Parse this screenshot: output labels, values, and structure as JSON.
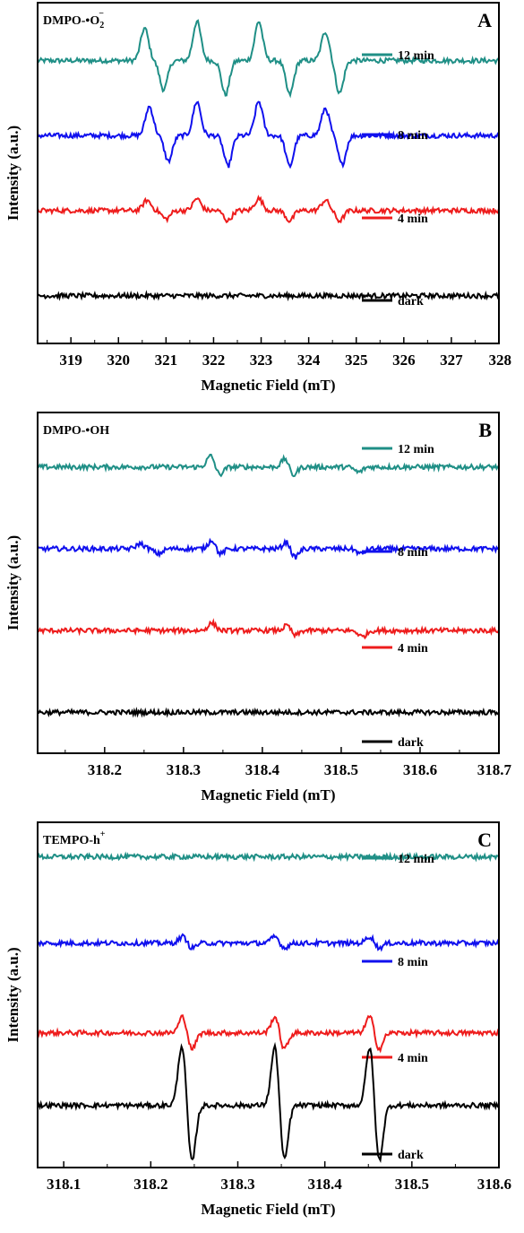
{
  "chart_data": [
    {
      "type": "line",
      "panel_letter": "A",
      "probe_label": "DMPO-•O",
      "probe_sub": "2",
      "probe_sup": "−",
      "xlabel": "Magnetic Field (mT)",
      "ylabel": "Intensity (a.u.)",
      "xlim": [
        318.3,
        328.0
      ],
      "xticks": [
        "319",
        "320",
        "321",
        "322",
        "323",
        "324",
        "325",
        "326",
        "327",
        "328"
      ],
      "y_ticks_shown": false,
      "grid": false,
      "legend_position": "top-right",
      "series": [
        {
          "name": "12 min",
          "color": "#1f8f86",
          "baseline": 0.83,
          "peaks": [
            {
              "x": 320.55,
              "amp": 0.095
            },
            {
              "x": 320.95,
              "amp": -0.085
            },
            {
              "x": 321.65,
              "amp": 0.115
            },
            {
              "x": 322.25,
              "amp": -0.1
            },
            {
              "x": 322.95,
              "amp": 0.115
            },
            {
              "x": 323.6,
              "amp": -0.1
            },
            {
              "x": 324.35,
              "amp": 0.085
            },
            {
              "x": 324.65,
              "amp": -0.095
            }
          ]
        },
        {
          "name": "8 min",
          "color": "#1010ee",
          "baseline": 0.61,
          "peaks": [
            {
              "x": 320.65,
              "amp": 0.085
            },
            {
              "x": 321.05,
              "amp": -0.075
            },
            {
              "x": 321.65,
              "amp": 0.1
            },
            {
              "x": 322.3,
              "amp": -0.09
            },
            {
              "x": 322.95,
              "amp": 0.1
            },
            {
              "x": 323.6,
              "amp": -0.09
            },
            {
              "x": 324.35,
              "amp": 0.08
            },
            {
              "x": 324.7,
              "amp": -0.085
            }
          ]
        },
        {
          "name": "4 min",
          "color": "#ee1c1c",
          "baseline": 0.39,
          "peaks": [
            {
              "x": 320.6,
              "amp": 0.03
            },
            {
              "x": 321.0,
              "amp": -0.025
            },
            {
              "x": 321.65,
              "amp": 0.035
            },
            {
              "x": 322.3,
              "amp": -0.03
            },
            {
              "x": 322.95,
              "amp": 0.035
            },
            {
              "x": 323.6,
              "amp": -0.03
            },
            {
              "x": 324.35,
              "amp": 0.03
            },
            {
              "x": 324.65,
              "amp": -0.03
            }
          ]
        },
        {
          "name": "dark",
          "color": "#000000",
          "baseline": 0.14,
          "peaks": []
        }
      ]
    },
    {
      "type": "line",
      "panel_letter": "B",
      "probe_label": "DMPO-•OH",
      "probe_sub": "",
      "probe_sup": "",
      "xlabel": "Magnetic Field (mT)",
      "ylabel": "Intensity (a.u.)",
      "xlim": [
        318.115,
        318.7
      ],
      "xticks": [
        "318.2",
        "318.3",
        "318.4",
        "318.5",
        "318.6",
        "318.7"
      ],
      "y_ticks_shown": false,
      "grid": false,
      "legend_position": "top-right",
      "series": [
        {
          "name": "12 min",
          "color": "#1f8f86",
          "baseline": 0.84,
          "peaks": [
            {
              "x": 318.335,
              "amp": 0.035
            },
            {
              "x": 318.345,
              "amp": -0.025
            },
            {
              "x": 318.43,
              "amp": 0.03
            },
            {
              "x": 318.438,
              "amp": -0.03
            },
            {
              "x": 318.522,
              "amp": -0.015
            }
          ]
        },
        {
          "name": "8 min",
          "color": "#1010ee",
          "baseline": 0.6,
          "peaks": [
            {
              "x": 318.245,
              "amp": 0.015
            },
            {
              "x": 318.268,
              "amp": -0.015
            },
            {
              "x": 318.337,
              "amp": 0.03
            },
            {
              "x": 318.345,
              "amp": -0.02
            },
            {
              "x": 318.432,
              "amp": 0.025
            },
            {
              "x": 318.44,
              "amp": -0.03
            },
            {
              "x": 318.525,
              "amp": -0.015
            }
          ]
        },
        {
          "name": "4 min",
          "color": "#ee1c1c",
          "baseline": 0.36,
          "peaks": [
            {
              "x": 318.336,
              "amp": 0.022
            },
            {
              "x": 318.433,
              "amp": 0.02
            },
            {
              "x": 318.44,
              "amp": -0.02
            },
            {
              "x": 318.527,
              "amp": -0.018
            }
          ]
        },
        {
          "name": "dark",
          "color": "#000000",
          "baseline": 0.12,
          "peaks": []
        }
      ]
    },
    {
      "type": "line",
      "panel_letter": "C",
      "probe_label": "TEMPO-h",
      "probe_sub": "",
      "probe_sup": "+",
      "xlabel": "Magnetic Field (mT)",
      "ylabel": "Intensity (a.u.)",
      "xlim": [
        318.07,
        318.6
      ],
      "xticks": [
        "318.1",
        "318.2",
        "318.3",
        "318.4",
        "318.5",
        "318.6"
      ],
      "y_ticks_shown": false,
      "grid": false,
      "legend_position": "top-right",
      "series": [
        {
          "name": "12 min",
          "color": "#1f8f86",
          "baseline": 0.9,
          "peaks": []
        },
        {
          "name": "8 min",
          "color": "#1010ee",
          "baseline": 0.65,
          "peaks": [
            {
              "x": 318.237,
              "amp": 0.02
            },
            {
              "x": 318.247,
              "amp": -0.015
            },
            {
              "x": 318.343,
              "amp": 0.02
            },
            {
              "x": 318.353,
              "amp": -0.015
            },
            {
              "x": 318.452,
              "amp": 0.02
            },
            {
              "x": 318.462,
              "amp": -0.015
            }
          ]
        },
        {
          "name": "4 min",
          "color": "#ee1c1c",
          "baseline": 0.39,
          "peaks": [
            {
              "x": 318.237,
              "amp": 0.05
            },
            {
              "x": 318.247,
              "amp": -0.05
            },
            {
              "x": 318.343,
              "amp": 0.05
            },
            {
              "x": 318.353,
              "amp": -0.05
            },
            {
              "x": 318.452,
              "amp": 0.05
            },
            {
              "x": 318.462,
              "amp": -0.05
            }
          ]
        },
        {
          "name": "dark",
          "color": "#000000",
          "baseline": 0.18,
          "peaks": [
            {
              "x": 318.236,
              "amp": 0.18
            },
            {
              "x": 318.247,
              "amp": -0.17
            },
            {
              "x": 318.343,
              "amp": 0.18
            },
            {
              "x": 318.353,
              "amp": -0.17
            },
            {
              "x": 318.452,
              "amp": 0.18
            },
            {
              "x": 318.462,
              "amp": -0.17
            }
          ]
        }
      ]
    }
  ]
}
